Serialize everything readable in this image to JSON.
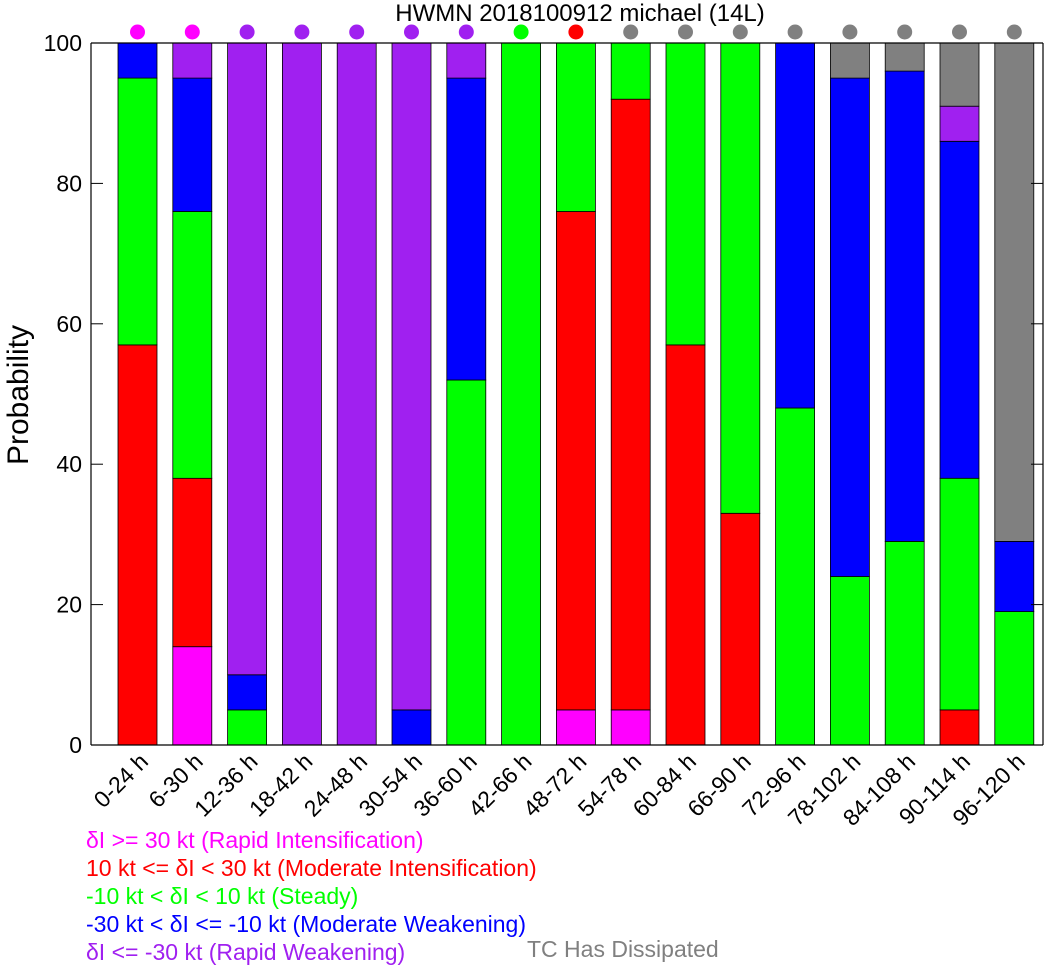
{
  "chart_data": {
    "type": "bar",
    "stacked": true,
    "title": "HWMN 2018100912 michael (14L)",
    "ylabel": "Probability",
    "xlabel": "",
    "ylim": [
      0,
      100
    ],
    "yticks": [
      0,
      20,
      40,
      60,
      80,
      100
    ],
    "categories": [
      "0-24 h",
      "6-30 h",
      "12-36 h",
      "18-42 h",
      "24-48 h",
      "30-54 h",
      "36-60 h",
      "42-66 h",
      "48-72 h",
      "54-78 h",
      "60-84 h",
      "66-90 h",
      "72-96 h",
      "78-102 h",
      "84-108 h",
      "90-114 h",
      "96-120 h"
    ],
    "series": [
      {
        "key": "ri",
        "color": "#ff00ff",
        "values": [
          0,
          14,
          0,
          0,
          0,
          0,
          0,
          0,
          5,
          5,
          0,
          0,
          0,
          0,
          0,
          0,
          0
        ]
      },
      {
        "key": "mi",
        "color": "#ff0000",
        "values": [
          57,
          24,
          0,
          0,
          0,
          0,
          0,
          0,
          71,
          87,
          57,
          33,
          0,
          0,
          0,
          5,
          0
        ]
      },
      {
        "key": "steady",
        "color": "#00ff00",
        "values": [
          38,
          38,
          5,
          0,
          0,
          0,
          52,
          100,
          24,
          8,
          43,
          67,
          48,
          24,
          29,
          33,
          19
        ]
      },
      {
        "key": "mw",
        "color": "#0000ff",
        "values": [
          5,
          19,
          5,
          0,
          0,
          5,
          43,
          0,
          0,
          0,
          0,
          0,
          52,
          71,
          67,
          48,
          10
        ]
      },
      {
        "key": "rw",
        "color": "#a020f0",
        "values": [
          0,
          5,
          90,
          100,
          100,
          95,
          5,
          0,
          0,
          0,
          0,
          0,
          0,
          0,
          0,
          5,
          0
        ]
      },
      {
        "key": "dissipated",
        "color": "#808080",
        "values": [
          0,
          0,
          0,
          0,
          0,
          0,
          0,
          0,
          0,
          0,
          0,
          0,
          0,
          5,
          4,
          9,
          71
        ]
      }
    ],
    "top_markers": [
      "ri",
      "ri",
      "rw",
      "rw",
      "rw",
      "rw",
      "rw",
      "steady",
      "mi",
      "dissipated",
      "dissipated",
      "dissipated",
      "dissipated",
      "dissipated",
      "dissipated",
      "dissipated",
      "dissipated"
    ],
    "grid": false,
    "legend": {
      "placement": "bottom-left",
      "entries": [
        {
          "key": "ri",
          "prefix": "δI >= 30 kt",
          "desc": "(Rapid Intensification)",
          "color": "#ff00ff"
        },
        {
          "key": "mi",
          "prefix": "10 kt <= δI < 30 kt",
          "desc": "(Moderate Intensification)",
          "color": "#ff0000"
        },
        {
          "key": "steady",
          "prefix": "-10 kt < δI < 10 kt",
          "desc": "(Steady)",
          "color": "#00ff00"
        },
        {
          "key": "mw",
          "prefix": "-30 kt < δI <= -10 kt",
          "desc": "(Moderate Weakening)",
          "color": "#0000ff"
        },
        {
          "key": "rw",
          "prefix": "δI <= -30 kt",
          "desc": "(Rapid Weakening)",
          "color": "#a020f0"
        }
      ],
      "dissipated_label": "TC Has Dissipated",
      "dissipated_color": "#808080"
    }
  }
}
